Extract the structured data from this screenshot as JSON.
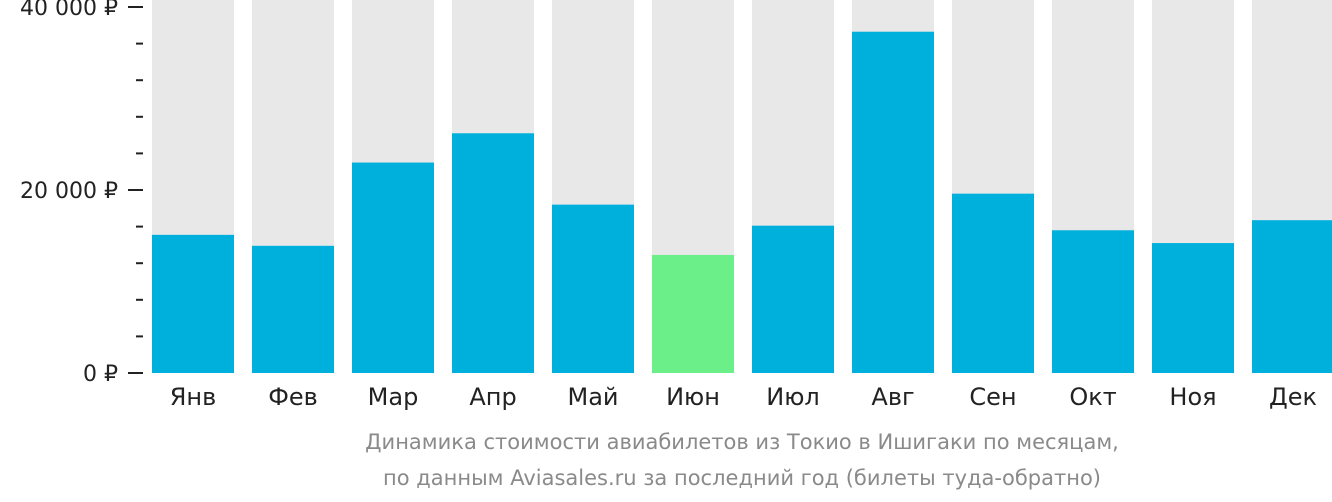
{
  "chart_data": {
    "type": "bar",
    "categories": [
      "Янв",
      "Фев",
      "Мар",
      "Апр",
      "Май",
      "Июн",
      "Июл",
      "Авг",
      "Сен",
      "Окт",
      "Ноя",
      "Дек"
    ],
    "values": [
      15100,
      13900,
      23000,
      26200,
      18400,
      12900,
      16100,
      37300,
      19600,
      15600,
      14200,
      16700
    ],
    "highlight_index": 5,
    "ylim": [
      0,
      40000
    ],
    "yticks": [
      {
        "value": 0,
        "label": "0 ₽"
      },
      {
        "value": 20000,
        "label": "20 000 ₽"
      },
      {
        "value": 40000,
        "label": "40 000 ₽"
      }
    ],
    "minor_tick_step": 4000,
    "colors": {
      "bar": "#00b0dc",
      "highlight": "#6bef88",
      "background_bar": "#e8e8e8",
      "axis": "#222222"
    },
    "caption_line1": "Динамика стоимости авиабилетов из Токио в Ишигаки по месяцам,",
    "caption_line2": "по данным Aviasales.ru за последний год (билеты туда-обратно)"
  }
}
